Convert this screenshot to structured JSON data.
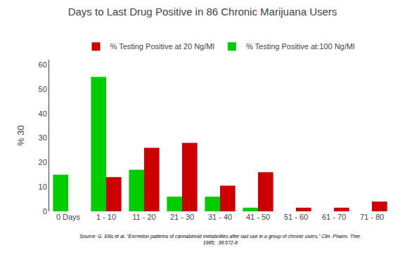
{
  "chart_data": {
    "type": "bar",
    "title": "Days to Last Drug Positive in 86 Chronic Marijuana Users",
    "y_label": "% 30",
    "categories": [
      "0 Days",
      "1 - 10",
      "11 - 20",
      "21 - 30",
      "31 - 40",
      "41 - 50",
      "51 - 60",
      "61 - 70",
      "71 - 80"
    ],
    "series": [
      {
        "name": "% Testing Positive at:100 Ng/Ml",
        "color": "#00CC00",
        "values": [
          15,
          55,
          17,
          6,
          6,
          1.5,
          0,
          0,
          0
        ]
      },
      {
        "name": "% Testing Positive at 20 Ng/Ml",
        "color": "#CC0000",
        "values": [
          0,
          14,
          26,
          28,
          10.5,
          16,
          1.5,
          1.5,
          4
        ]
      }
    ],
    "ylim": [
      0,
      62
    ],
    "yticks": [
      0,
      10,
      20,
      30,
      40,
      50,
      60
    ],
    "grid": false,
    "legend": "upper center",
    "annotations": [
      "Source: G. Ellis et al, \"Excretion patterns of cannabinoid metabolites after last use in a group of chronic users,\" Clin. Pharm. Ther.",
      "1985;  38:572-8"
    ]
  }
}
